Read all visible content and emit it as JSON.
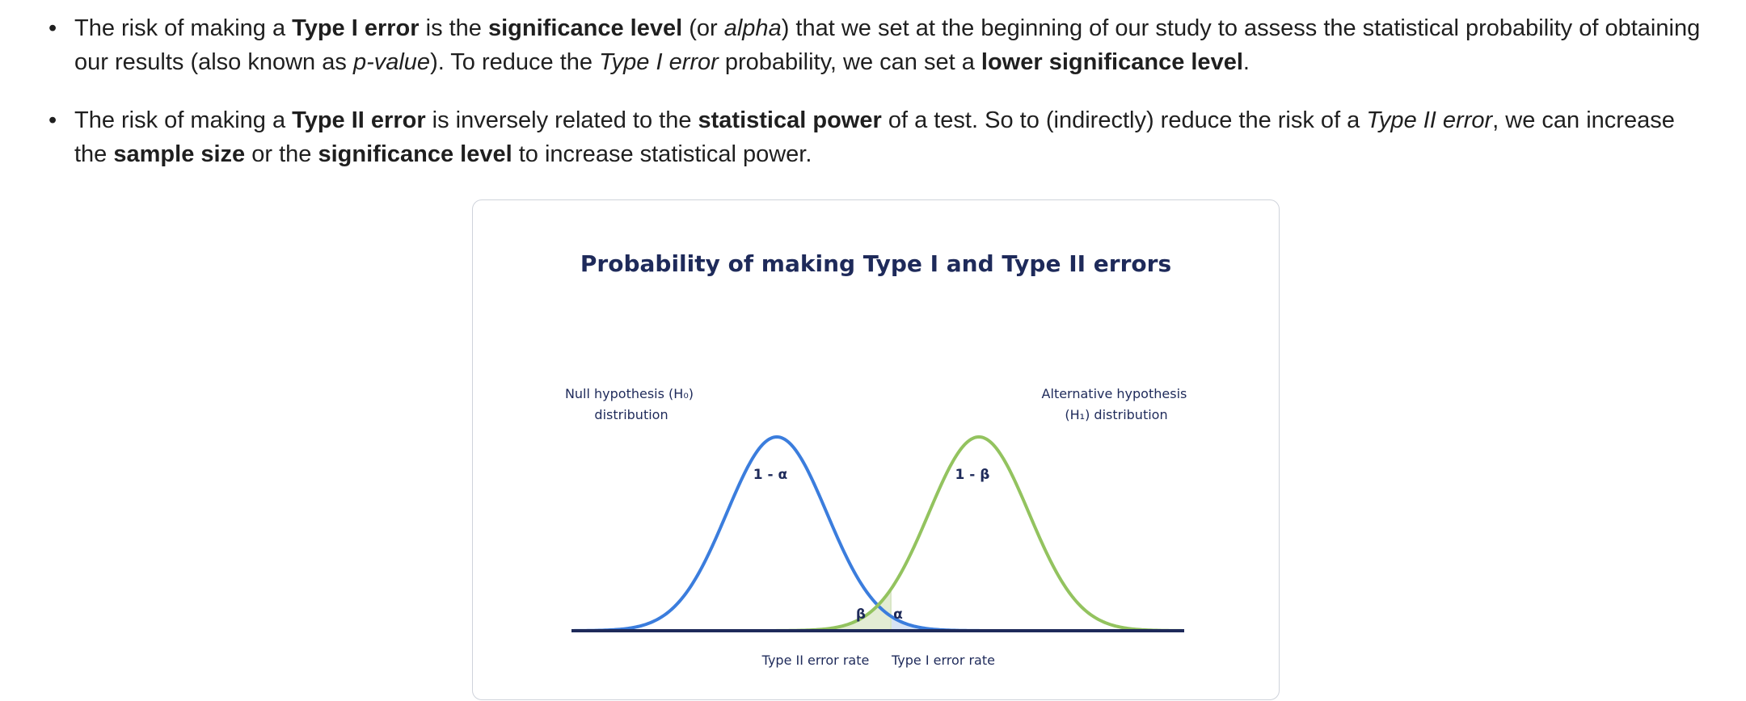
{
  "bullets": [
    {
      "segments": [
        {
          "t": "The risk of making a "
        },
        {
          "t": "Type I error",
          "b": true
        },
        {
          "t": " is the "
        },
        {
          "t": "significance level",
          "b": true
        },
        {
          "t": " (or "
        },
        {
          "t": "alpha",
          "i": true
        },
        {
          "t": ") that we set at the beginning of our study to assess the statistical probability of obtaining our results (also known as "
        },
        {
          "t": "p-value",
          "i": true
        },
        {
          "t": "). To reduce the "
        },
        {
          "t": "Type I error",
          "i": true
        },
        {
          "t": " probability, we can set a "
        },
        {
          "t": "lower significance level",
          "b": true
        },
        {
          "t": "."
        }
      ]
    },
    {
      "segments": [
        {
          "t": "The risk of making a "
        },
        {
          "t": "Type II error",
          "b": true
        },
        {
          "t": " is inversely related to the "
        },
        {
          "t": "statistical power",
          "b": true
        },
        {
          "t": " of a test. So to (indirectly) reduce the risk of a "
        },
        {
          "t": "Type II error",
          "i": true
        },
        {
          "t": ", we can increase the "
        },
        {
          "t": "sample size",
          "b": true
        },
        {
          "t": " or the "
        },
        {
          "t": "significance level",
          "b": true
        },
        {
          "t": " to increase statistical power."
        }
      ]
    }
  ],
  "figure": {
    "title": "Probability of making Type I and Type II errors",
    "null_label_line1": "Null hypothesis (H₀)",
    "null_label_line2": "distribution",
    "alt_label_line1": "Alternative hypothesis",
    "alt_label_line2": "(H₁) distribution",
    "one_minus_alpha": "1 - α",
    "one_minus_beta": "1 - β",
    "beta_symbol": "β",
    "alpha_symbol": "α",
    "type2_rate_label": "Type II error rate",
    "type1_rate_label": "Type I error rate",
    "colors": {
      "null_curve": "#3b7ddd",
      "alt_curve": "#93c35f",
      "axis": "#1e2a5a",
      "beta_fill": "#e3ecd4",
      "alpha_fill": "#d7e3f4",
      "text": "#1e2a5a"
    }
  }
}
